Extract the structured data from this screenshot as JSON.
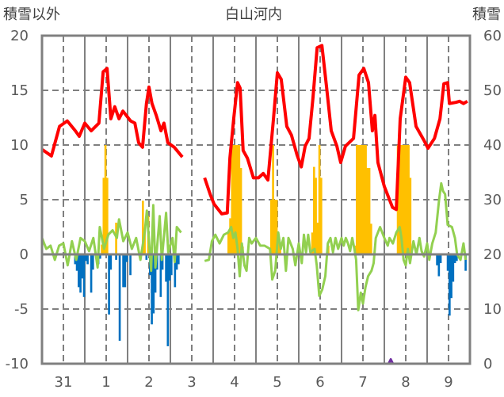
{
  "chart_data": {
    "type": "line",
    "title": "白山河内",
    "ylabel_left": "積雪以外",
    "ylabel_right": "積雪",
    "ylim_left": [
      -10,
      20
    ],
    "ylim_right": [
      0,
      60
    ],
    "yticks_left": [
      "20",
      "15",
      "10",
      "5",
      "0",
      "-5",
      "-10"
    ],
    "yticks_right": [
      "60",
      "50",
      "40",
      "30",
      "20",
      "10",
      "0"
    ],
    "xlim_days": [
      0,
      10
    ],
    "xtick_labels": [
      "31",
      "1",
      "2",
      "3",
      "4",
      "5",
      "6",
      "7",
      "8",
      "9"
    ],
    "grid": true,
    "colors": {
      "red": "#ff0000",
      "green": "#92d050",
      "orange": "#ffc000",
      "blue": "#0070c0",
      "purple": "#7030a0",
      "axis": "#808080"
    },
    "series": [
      {
        "name": "red",
        "axis": "left",
        "points": [
          [
            0,
            9.6
          ],
          [
            0.22,
            9.0
          ],
          [
            0.41,
            11.7
          ],
          [
            0.59,
            12.2
          ],
          [
            0.78,
            11.3
          ],
          [
            0.87,
            10.8
          ],
          [
            1.0,
            12.0
          ],
          [
            1.15,
            11.3
          ],
          [
            1.33,
            12.0
          ],
          [
            1.43,
            16.7
          ],
          [
            1.52,
            17.0
          ],
          [
            1.61,
            12.4
          ],
          [
            1.7,
            13.5
          ],
          [
            1.8,
            12.4
          ],
          [
            1.89,
            13.1
          ],
          [
            2.07,
            12.2
          ],
          [
            2.17,
            12.0
          ],
          [
            2.26,
            10.2
          ],
          [
            2.35,
            9.8
          ],
          [
            2.44,
            13.8
          ],
          [
            2.5,
            15.3
          ],
          [
            2.57,
            13.8
          ],
          [
            2.67,
            12.7
          ],
          [
            2.78,
            11.3
          ],
          [
            2.85,
            12.0
          ],
          [
            2.94,
            10.2
          ],
          [
            3.09,
            9.8
          ],
          [
            3.28,
            8.9
          ],
          null,
          [
            3.8,
            7.0
          ],
          [
            3.93,
            5.5
          ],
          [
            4.02,
            4.6
          ],
          [
            4.2,
            3.7
          ],
          [
            4.33,
            3.8
          ],
          [
            4.39,
            8.8
          ],
          [
            4.48,
            12.4
          ],
          [
            4.57,
            15.7
          ],
          [
            4.63,
            15.2
          ],
          [
            4.7,
            9.5
          ],
          [
            4.8,
            8.8
          ],
          [
            4.94,
            7.0
          ],
          [
            5.06,
            7.0
          ],
          [
            5.17,
            7.4
          ],
          [
            5.28,
            6.8
          ],
          [
            5.41,
            12.4
          ],
          [
            5.5,
            16.6
          ],
          [
            5.59,
            16.0
          ],
          [
            5.72,
            11.7
          ],
          [
            5.83,
            10.9
          ],
          [
            5.96,
            9.1
          ],
          [
            6.06,
            8.0
          ],
          [
            6.15,
            9.9
          ],
          [
            6.24,
            10.6
          ],
          [
            6.33,
            14.2
          ],
          [
            6.43,
            18.9
          ],
          [
            6.54,
            19.1
          ],
          [
            6.65,
            15.3
          ],
          [
            6.76,
            11.3
          ],
          [
            6.89,
            9.9
          ],
          [
            6.98,
            8.4
          ],
          [
            7.09,
            9.9
          ],
          [
            7.28,
            10.6
          ],
          [
            7.41,
            16.4
          ],
          [
            7.52,
            17.0
          ],
          [
            7.63,
            15.7
          ],
          [
            7.72,
            11.3
          ],
          [
            7.78,
            12.7
          ],
          [
            7.85,
            8.4
          ],
          [
            8.0,
            6.2
          ],
          [
            8.19,
            4.3
          ],
          [
            8.28,
            4.1
          ],
          [
            8.37,
            12.4
          ],
          [
            8.5,
            16.2
          ],
          [
            8.59,
            15.7
          ],
          [
            8.74,
            11.7
          ],
          [
            8.93,
            10.4
          ],
          [
            9.02,
            9.7
          ],
          [
            9.17,
            10.6
          ],
          [
            9.3,
            12.4
          ],
          [
            9.39,
            15.6
          ],
          [
            9.48,
            15.7
          ],
          [
            9.52,
            13.8
          ],
          [
            9.67,
            13.9
          ],
          [
            9.76,
            14.0
          ],
          [
            9.85,
            13.8
          ],
          [
            9.94,
            14.0
          ]
        ]
      },
      {
        "name": "green",
        "axis": "left",
        "points": [
          [
            0,
            1.5
          ],
          [
            0.1,
            0.5
          ],
          [
            0.2,
            0.8
          ],
          [
            0.3,
            -0.5
          ],
          [
            0.4,
            0.8
          ],
          [
            0.5,
            1.0
          ],
          [
            0.6,
            -1.0
          ],
          [
            0.7,
            1.2
          ],
          [
            0.8,
            -0.5
          ],
          [
            0.9,
            1.5
          ],
          [
            1.0,
            1.2
          ],
          [
            1.1,
            0.3
          ],
          [
            1.2,
            1.5
          ],
          [
            1.3,
            -1.2
          ],
          [
            1.35,
            2.5
          ],
          [
            1.45,
            0.5
          ],
          [
            1.55,
            1.8
          ],
          [
            1.65,
            2.2
          ],
          [
            1.75,
            1.5
          ],
          [
            1.8,
            3.2
          ],
          [
            1.9,
            1.2
          ],
          [
            2.0,
            2.0
          ],
          [
            2.1,
            0.5
          ],
          [
            2.2,
            1.5
          ],
          [
            2.3,
            -0.5
          ],
          [
            2.4,
            2.0
          ],
          [
            2.45,
            4.0
          ],
          [
            2.55,
            -1.5
          ],
          [
            2.6,
            4.5
          ],
          [
            2.65,
            -1.2
          ],
          [
            2.75,
            3.5
          ],
          [
            2.8,
            -0.5
          ],
          [
            2.9,
            3.8
          ],
          [
            2.95,
            0.2
          ],
          [
            3.05,
            1.5
          ],
          [
            3.1,
            -0.7
          ],
          [
            3.15,
            2.5
          ],
          [
            3.25,
            2.0
          ],
          null,
          [
            3.8,
            -0.6
          ],
          [
            3.9,
            -0.5
          ],
          [
            3.97,
            1.2
          ],
          [
            4.05,
            1.8
          ],
          [
            4.15,
            1.0
          ],
          [
            4.25,
            1.8
          ],
          [
            4.35,
            2.0
          ],
          [
            4.42,
            2.5
          ],
          [
            4.47,
            1.5
          ],
          [
            4.52,
            2.0
          ],
          [
            4.57,
            0.5
          ],
          [
            4.62,
            -2.0
          ],
          [
            4.67,
            1.0
          ],
          [
            4.73,
            -1.0
          ],
          [
            4.78,
            -1.5
          ],
          [
            4.84,
            1.5
          ],
          [
            4.9,
            1.0
          ],
          [
            5.0,
            1.5
          ],
          [
            5.1,
            0.8
          ],
          [
            5.2,
            0.8
          ],
          [
            5.33,
            0.5
          ],
          [
            5.38,
            -2.3
          ],
          [
            5.45,
            -1.5
          ],
          [
            5.52,
            2.0
          ],
          [
            5.58,
            0.5
          ],
          [
            5.64,
            1.5
          ],
          [
            5.7,
            -1.5
          ],
          [
            5.76,
            1.5
          ],
          [
            5.86,
            0.5
          ],
          [
            5.92,
            -1.0
          ],
          [
            6.0,
            1.0
          ],
          [
            6.07,
            -0.8
          ],
          [
            6.12,
            1.8
          ],
          [
            6.17,
            0.2
          ],
          [
            6.22,
            1.8
          ],
          [
            6.27,
            0.2
          ],
          [
            6.37,
            0.5
          ],
          [
            6.42,
            -1.0
          ],
          [
            6.48,
            -3.8
          ],
          [
            6.55,
            -3.2
          ],
          [
            6.62,
            -2.0
          ],
          [
            6.68,
            1.0
          ],
          [
            6.74,
            1.5
          ],
          [
            6.8,
            0.2
          ],
          [
            6.86,
            1.5
          ],
          [
            6.92,
            0.5
          ],
          [
            7.0,
            1.5
          ],
          [
            7.05,
            0.8
          ],
          [
            7.1,
            1.5
          ],
          [
            7.15,
            1.0
          ],
          [
            7.2,
            0.3
          ],
          [
            7.25,
            1.5
          ],
          [
            7.3,
            0.5
          ],
          [
            7.34,
            -0.5
          ],
          [
            7.39,
            -5.1
          ],
          [
            7.45,
            -3.5
          ],
          [
            7.5,
            -4.5
          ],
          [
            7.56,
            -3.0
          ],
          [
            7.62,
            -2.0
          ],
          [
            7.7,
            -1.5
          ],
          [
            7.75,
            -0.8
          ],
          [
            7.8,
            1.5
          ],
          [
            7.9,
            2.5
          ],
          [
            8.0,
            1.5
          ],
          [
            8.08,
            0.8
          ],
          [
            8.12,
            1.5
          ],
          [
            8.2,
            1.0
          ],
          [
            8.28,
            2.0
          ],
          [
            8.36,
            2.5
          ],
          [
            8.4,
            1.5
          ],
          [
            8.45,
            -0.5
          ],
          [
            8.5,
            -1.0
          ],
          [
            8.55,
            0.5
          ],
          [
            8.6,
            -0.8
          ],
          [
            8.68,
            1.2
          ],
          [
            8.75,
            0.0
          ],
          [
            8.82,
            1.5
          ],
          [
            8.87,
            0.3
          ],
          [
            8.93,
            -0.2
          ],
          [
            9.0,
            1.0
          ],
          [
            9.05,
            -0.5
          ],
          [
            9.12,
            1.0
          ],
          [
            9.2,
            2.0
          ],
          [
            9.28,
            5.0
          ],
          [
            9.33,
            6.5
          ],
          [
            9.37,
            5.8
          ],
          [
            9.42,
            5.5
          ],
          [
            9.48,
            2.7
          ],
          [
            9.58,
            2.5
          ],
          [
            9.65,
            1.5
          ],
          [
            9.7,
            0.0
          ],
          [
            9.78,
            -0.5
          ],
          [
            9.85,
            1.0
          ],
          [
            9.9,
            -0.5
          ]
        ]
      },
      {
        "name": "purple",
        "axis": "right",
        "points": [
          [
            6.43,
            0
          ],
          [
            8.1,
            0
          ],
          [
            8.15,
            0.8
          ],
          [
            8.2,
            0
          ],
          [
            10,
            0
          ]
        ]
      }
    ],
    "bars": [
      {
        "name": "orange",
        "axis": "left",
        "hourly": [
          [
            33,
            0.9
          ],
          [
            34,
            7
          ],
          [
            35,
            10
          ],
          [
            36,
            7
          ],
          [
            41,
            2.9
          ],
          [
            56,
            4.9
          ],
          [
            57,
            2.0
          ],
          [
            59,
            3.5
          ],
          [
            104,
            2.0
          ],
          [
            105,
            3.3
          ],
          [
            106,
            10
          ],
          [
            107,
            10
          ],
          [
            108,
            10
          ],
          [
            109,
            10
          ],
          [
            110,
            10
          ],
          [
            111,
            7.9
          ],
          [
            112,
            0.7
          ],
          [
            128,
            5
          ],
          [
            129,
            10
          ],
          [
            130,
            5
          ],
          [
            131,
            5
          ],
          [
            132,
            1.5
          ],
          [
            133,
            0.7
          ],
          [
            151,
            2.0
          ],
          [
            152,
            8
          ],
          [
            153,
            7
          ],
          [
            154,
            2.9
          ],
          [
            155,
            10
          ],
          [
            156,
            7
          ],
          [
            160,
            0.8
          ],
          [
            175,
            0.8
          ],
          [
            176,
            10
          ],
          [
            177,
            10
          ],
          [
            178,
            10
          ],
          [
            179,
            10
          ],
          [
            180,
            10
          ],
          [
            181,
            10
          ],
          [
            182,
            7.9
          ],
          [
            183,
            7.9
          ],
          [
            184,
            2.8
          ],
          [
            199,
            10
          ],
          [
            200,
            10
          ],
          [
            201,
            10
          ],
          [
            202,
            10
          ],
          [
            203,
            10
          ],
          [
            204,
            10
          ],
          [
            205,
            10
          ],
          [
            206,
            7
          ]
        ]
      },
      {
        "name": "blue",
        "axis": "left",
        "hourly": [
          [
            18,
            -0.9
          ],
          [
            19,
            -1.5
          ],
          [
            20,
            -3.0
          ],
          [
            21,
            -3.5
          ],
          [
            22,
            -2.2
          ],
          [
            23,
            -3.9
          ],
          [
            24,
            -0.6
          ],
          [
            25,
            -0.9
          ],
          [
            27,
            -3.5
          ],
          [
            28,
            -1.4
          ],
          [
            31,
            -0.9
          ],
          [
            32,
            -0.4
          ],
          [
            37,
            -5.5
          ],
          [
            38,
            -1.4
          ],
          [
            41,
            -0.5
          ],
          [
            43,
            -7.9
          ],
          [
            45,
            -3.0
          ],
          [
            46,
            -3.0
          ],
          [
            47,
            -0.7
          ],
          [
            49,
            -1.9
          ],
          [
            58,
            -0.5
          ],
          [
            60,
            -1.9
          ],
          [
            61,
            -6.4
          ],
          [
            62,
            -5.4
          ],
          [
            63,
            -3.5
          ],
          [
            64,
            -1.4
          ],
          [
            66,
            -3.9
          ],
          [
            67,
            -1.4
          ],
          [
            69,
            -2.5
          ],
          [
            70,
            -8.4
          ],
          [
            71,
            -2.4
          ],
          [
            72,
            -1.9
          ],
          [
            74,
            -3.0
          ],
          [
            75,
            -1.4
          ],
          [
            76,
            -0.9
          ],
          [
            221,
            -1.0
          ],
          [
            222,
            -2.0
          ],
          [
            223,
            -0.8
          ],
          [
            227,
            -1.5
          ],
          [
            228,
            -5.6
          ],
          [
            229,
            -4.0
          ],
          [
            230,
            -2.5
          ],
          [
            231,
            -0.8
          ],
          [
            232,
            -0.6
          ],
          [
            237,
            -1.5
          ]
        ]
      }
    ]
  }
}
